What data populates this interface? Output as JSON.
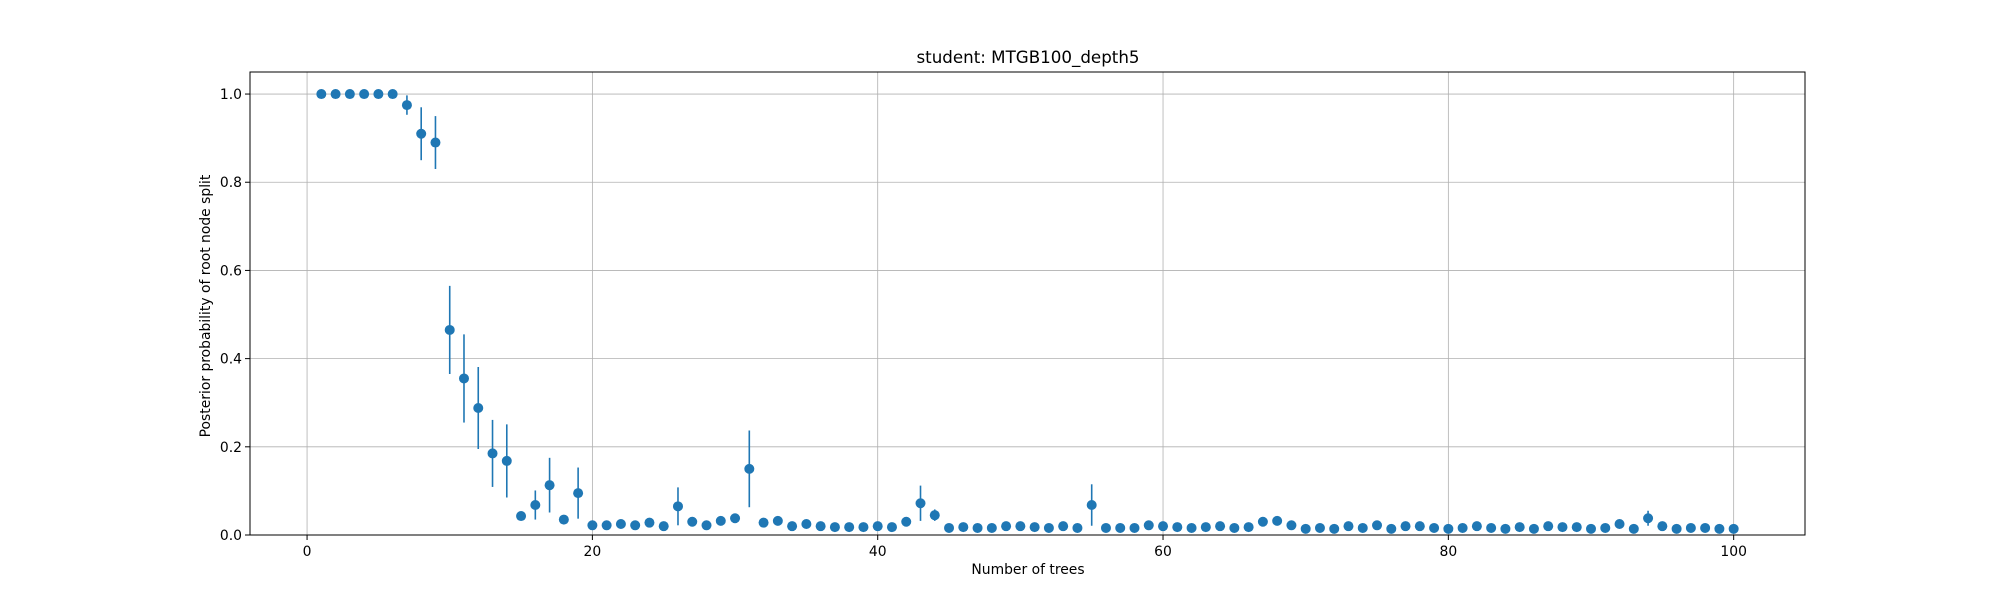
{
  "chart_data": {
    "type": "scatter",
    "title": "student: MTGB100_depth5",
    "xlabel": "Number of trees",
    "ylabel": "Posterior probability of root node split",
    "xlim": [
      -4,
      105
    ],
    "ylim": [
      0,
      1.05
    ],
    "xticks": [
      0,
      20,
      40,
      60,
      80,
      100
    ],
    "yticks": [
      0.0,
      0.2,
      0.4,
      0.6,
      0.8,
      1.0
    ],
    "xtick_labels": [
      "0",
      "20",
      "40",
      "60",
      "80",
      "100"
    ],
    "ytick_labels": [
      "0.0",
      "0.2",
      "0.4",
      "0.6",
      "0.8",
      "1.0"
    ],
    "grid": true,
    "legend": "none",
    "marker_color": "#1f77b4",
    "series": [
      {
        "x": [
          1,
          2,
          3,
          4,
          5,
          6,
          7,
          8,
          9,
          10,
          11,
          12,
          13,
          14,
          15,
          16,
          17,
          18,
          19,
          20,
          21,
          22,
          23,
          24,
          25,
          26,
          27,
          28,
          29,
          30,
          31,
          32,
          33,
          34,
          35,
          36,
          37,
          38,
          39,
          40,
          41,
          42,
          43,
          44,
          45,
          46,
          47,
          48,
          49,
          50,
          51,
          52,
          53,
          54,
          55,
          56,
          57,
          58,
          59,
          60,
          61,
          62,
          63,
          64,
          65,
          66,
          67,
          68,
          69,
          70,
          71,
          72,
          73,
          74,
          75,
          76,
          77,
          78,
          79,
          80,
          81,
          82,
          83,
          84,
          85,
          86,
          87,
          88,
          89,
          90,
          91,
          92,
          93,
          94,
          95,
          96,
          97,
          98,
          99,
          100
        ],
        "y": [
          1.0,
          1.0,
          1.0,
          1.0,
          1.0,
          1.0,
          0.975,
          0.91,
          0.89,
          0.465,
          0.355,
          0.288,
          0.185,
          0.168,
          0.043,
          0.068,
          0.113,
          0.035,
          0.095,
          0.022,
          0.022,
          0.025,
          0.022,
          0.028,
          0.02,
          0.065,
          0.03,
          0.022,
          0.032,
          0.038,
          0.15,
          0.028,
          0.032,
          0.02,
          0.025,
          0.02,
          0.018,
          0.018,
          0.018,
          0.02,
          0.018,
          0.03,
          0.072,
          0.045,
          0.016,
          0.018,
          0.016,
          0.016,
          0.02,
          0.02,
          0.018,
          0.016,
          0.02,
          0.016,
          0.068,
          0.016,
          0.016,
          0.016,
          0.022,
          0.02,
          0.018,
          0.016,
          0.018,
          0.02,
          0.016,
          0.018,
          0.03,
          0.032,
          0.022,
          0.014,
          0.016,
          0.014,
          0.02,
          0.016,
          0.022,
          0.014,
          0.02,
          0.02,
          0.016,
          0.014,
          0.016,
          0.02,
          0.016,
          0.014,
          0.018,
          0.014,
          0.02,
          0.018,
          0.018,
          0.014,
          0.016,
          0.025,
          0.014,
          0.038,
          0.02,
          0.014,
          0.016,
          0.016,
          0.014,
          0.014
        ],
        "yerr": [
          0.0,
          0.0,
          0.0,
          0.0,
          0.0,
          0.0,
          0.022,
          0.06,
          0.06,
          0.1,
          0.1,
          0.093,
          0.076,
          0.083,
          0.0,
          0.033,
          0.062,
          0.0,
          0.058,
          0.0,
          0.0,
          0.0,
          0.0,
          0.0,
          0.0,
          0.043,
          0.0,
          0.0,
          0.0,
          0.01,
          0.087,
          0.0,
          0.0,
          0.0,
          0.0,
          0.0,
          0.0,
          0.0,
          0.0,
          0.0,
          0.0,
          0.0,
          0.04,
          0.013,
          0.0,
          0.0,
          0.0,
          0.0,
          0.0,
          0.0,
          0.0,
          0.0,
          0.0,
          0.0,
          0.047,
          0.0,
          0.0,
          0.0,
          0.0,
          0.0,
          0.0,
          0.0,
          0.0,
          0.0,
          0.0,
          0.0,
          0.0,
          0.0,
          0.0,
          0.0,
          0.0,
          0.0,
          0.0,
          0.0,
          0.0,
          0.0,
          0.0,
          0.0,
          0.0,
          0.0,
          0.0,
          0.0,
          0.0,
          0.0,
          0.0,
          0.0,
          0.0,
          0.0,
          0.0,
          0.0,
          0.0,
          0.0,
          0.0,
          0.017,
          0.0,
          0.0,
          0.0,
          0.0,
          0.0,
          0.0
        ]
      }
    ]
  }
}
